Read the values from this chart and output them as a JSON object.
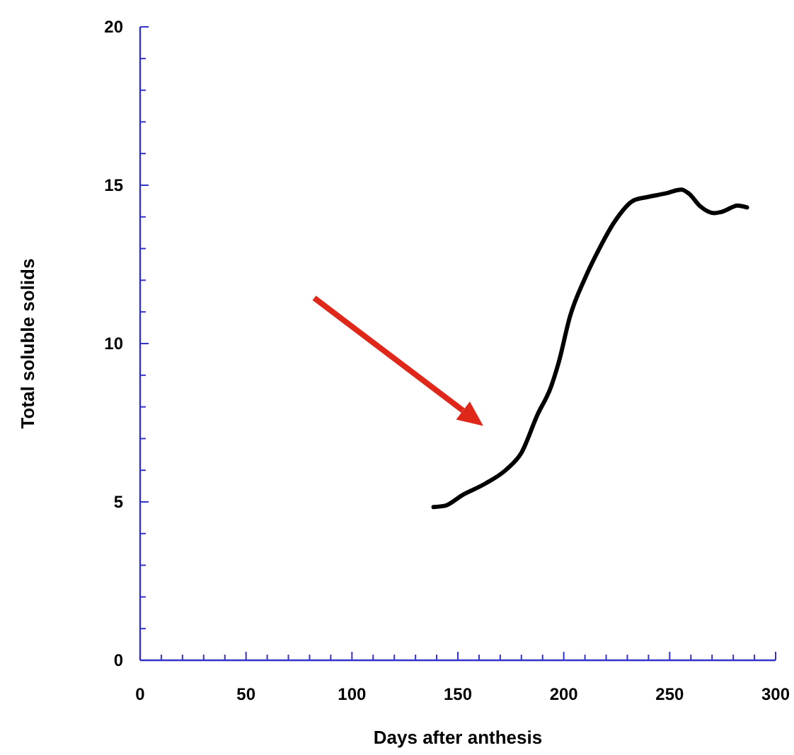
{
  "chart_data": {
    "type": "line",
    "xlabel": "Days after anthesis",
    "ylabel": "Total soluble solids",
    "xlim": [
      0,
      300
    ],
    "ylim": [
      0,
      20
    ],
    "xticks": [
      0,
      {
        "value": 10,
        "label": null
      },
      {
        "value": 20,
        "label": null
      },
      {
        "value": 30,
        "label": null
      },
      {
        "value": 40,
        "label": null
      },
      50,
      {
        "value": 60,
        "label": null
      },
      {
        "value": 70,
        "label": null
      },
      {
        "value": 80,
        "label": null
      },
      {
        "value": 90,
        "label": null
      },
      100,
      {
        "value": 110,
        "label": null
      },
      {
        "value": 120,
        "label": null
      },
      {
        "value": 130,
        "label": null
      },
      {
        "value": 140,
        "label": null
      },
      150,
      {
        "value": 160,
        "label": null
      },
      {
        "value": 170,
        "label": null
      },
      {
        "value": 180,
        "label": null
      },
      {
        "value": 190,
        "label": null
      },
      200,
      {
        "value": 210,
        "label": null
      },
      {
        "value": 220,
        "label": null
      },
      {
        "value": 230,
        "label": null
      },
      {
        "value": 240,
        "label": null
      },
      250,
      {
        "value": 260,
        "label": null
      },
      {
        "value": 270,
        "label": null
      },
      {
        "value": 280,
        "label": null
      },
      {
        "value": 290,
        "label": null
      },
      300
    ],
    "yticks": [
      0,
      {
        "value": 1,
        "label": null
      },
      {
        "value": 2,
        "label": null
      },
      {
        "value": 3,
        "label": null
      },
      {
        "value": 4,
        "label": null
      },
      5,
      {
        "value": 6,
        "label": null
      },
      {
        "value": 7,
        "label": null
      },
      {
        "value": 8,
        "label": null
      },
      {
        "value": 9,
        "label": null
      },
      10,
      {
        "value": 11,
        "label": null
      },
      {
        "value": 12,
        "label": null
      },
      {
        "value": 13,
        "label": null
      },
      {
        "value": 14,
        "label": null
      },
      15,
      {
        "value": 16,
        "label": null
      },
      {
        "value": 17,
        "label": null
      },
      {
        "value": 18,
        "label": null
      },
      {
        "value": 19,
        "label": null
      },
      20
    ],
    "grid": false,
    "marker": "none",
    "line_style": "solid",
    "series": [
      {
        "color": "#000000",
        "x": [
          138.5,
          144,
          152,
          163,
          173,
          180,
          187.5,
          194,
          197.5,
          203,
          210,
          216.5,
          224,
          233,
          239,
          248,
          255.5,
          259,
          264.5,
          271,
          275.5,
          282,
          286.5
        ],
        "values": [
          4.84,
          4.88,
          5.21,
          5.58,
          6.03,
          6.55,
          7.74,
          8.64,
          9.38,
          10.87,
          12.06,
          12.96,
          13.85,
          14.52,
          14.62,
          14.74,
          14.86,
          14.74,
          14.33,
          14.12,
          14.18,
          14.36,
          14.3
        ]
      }
    ]
  }
}
